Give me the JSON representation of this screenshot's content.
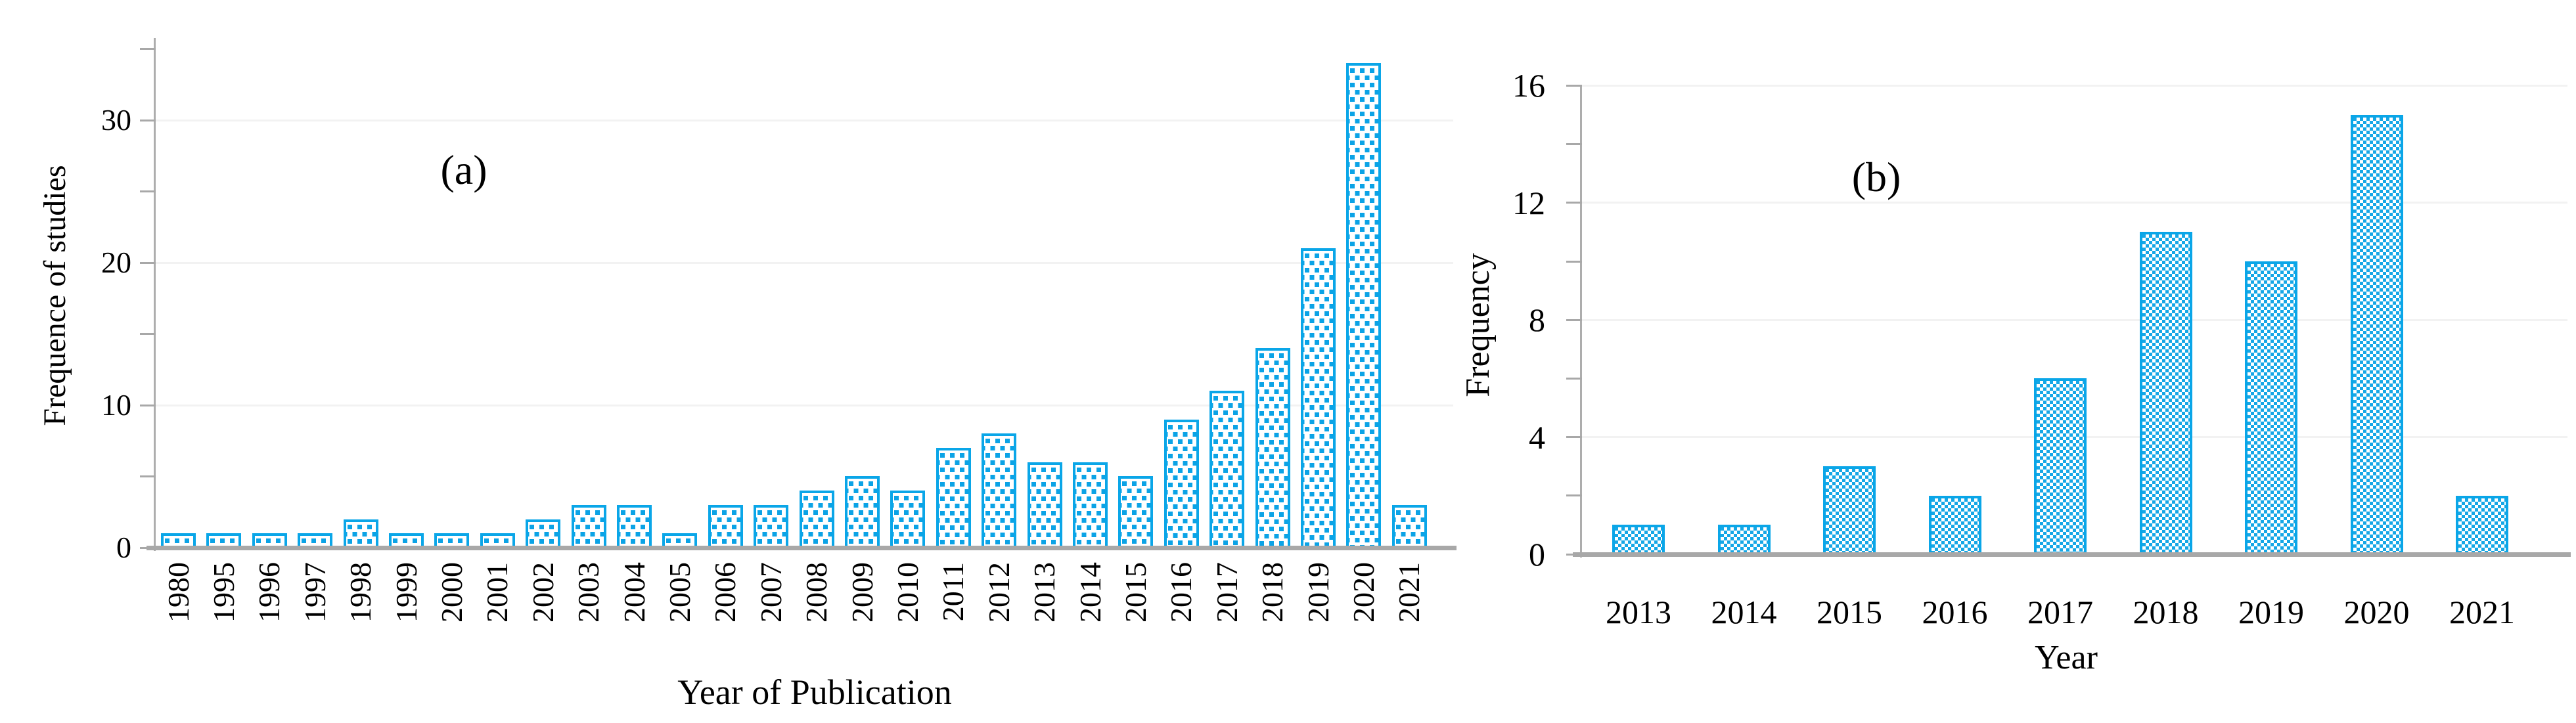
{
  "figure": {
    "background": "#ffffff",
    "description": "Two-panel bar chart figure of study publication frequency by year"
  },
  "colors": {
    "bar_pattern_blue": "#0ba3e6",
    "bar_outline_blue": "#0aa6e8",
    "axis_gray": "#a8a8a8",
    "gridline_gray": "#f2f2f2",
    "text": "#000000",
    "background": "#ffffff"
  },
  "chart_data": [
    {
      "type": "bar",
      "panel_label": "(a)",
      "xlabel": "Year of Publication",
      "ylabel": "Frequence of studies",
      "categories": [
        "1980",
        "1995",
        "1996",
        "1997",
        "1998",
        "1999",
        "2000",
        "2001",
        "2002",
        "2003",
        "2004",
        "2005",
        "2006",
        "2007",
        "2008",
        "2009",
        "2010",
        "2011",
        "2012",
        "2013",
        "2014",
        "2015",
        "2016",
        "2017",
        "2018",
        "2019",
        "2020",
        "2021"
      ],
      "values": [
        1,
        1,
        1,
        1,
        2,
        1,
        1,
        1,
        2,
        3,
        3,
        1,
        3,
        3,
        4,
        5,
        4,
        7,
        8,
        6,
        6,
        5,
        9,
        11,
        14,
        21,
        34,
        3
      ],
      "ylim": [
        0,
        35
      ],
      "ytick_labels": [
        "0",
        "10",
        "20",
        "30"
      ],
      "ytick_label_values": [
        0,
        10,
        20,
        30
      ],
      "minor_tick_step": 5,
      "gridlines": [
        10,
        20,
        30
      ],
      "legend": "none",
      "bar_fill": "white with blue square-dot pattern",
      "x_tick_label_orientation": "vertical"
    },
    {
      "type": "bar",
      "panel_label": "(b)",
      "xlabel": "Year",
      "ylabel": "Frequency",
      "categories": [
        "2013",
        "2014",
        "2015",
        "2016",
        "2017",
        "2018",
        "2019",
        "2020",
        "2021"
      ],
      "values": [
        1,
        1,
        3,
        2,
        6,
        11,
        10,
        15,
        2
      ],
      "ylim": [
        0,
        16
      ],
      "ytick_labels": [
        "0",
        "4",
        "8",
        "12",
        "16"
      ],
      "ytick_label_values": [
        0,
        4,
        8,
        12,
        16
      ],
      "minor_tick_step": 2,
      "gridlines": [
        4,
        8,
        12,
        16
      ],
      "legend": "none",
      "bar_fill": "white with blue checkerboard pattern",
      "x_tick_label_orientation": "horizontal"
    }
  ]
}
